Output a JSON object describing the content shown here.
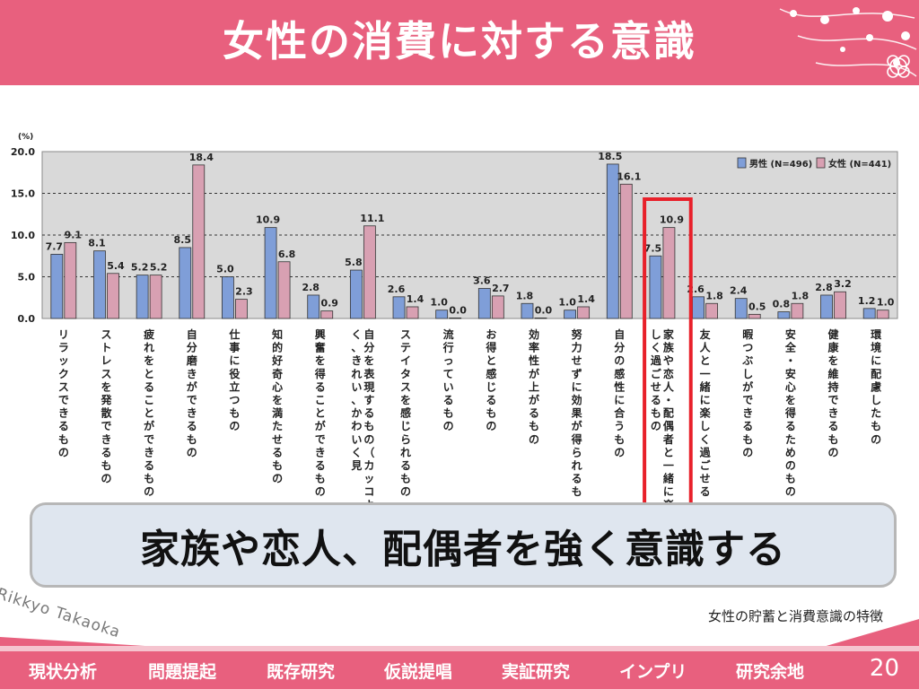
{
  "header": {
    "title": "女性の消費に対する意識"
  },
  "chart_data": {
    "type": "bar",
    "unit_label": "(%)",
    "yticks": [
      "20.0",
      "15.0",
      "10.0",
      "5.0",
      "0.0"
    ],
    "ylim": [
      0,
      20
    ],
    "legend_placement": "top-right",
    "categories": [
      "リラックスできるもの",
      "ストレスを発散できるもの",
      "疲れをとることができるもの",
      "自分磨きができるもの",
      "仕事に役立つもの",
      "知的好奇心を満たせるもの",
      "興奮を得ることができるもの",
      "自分を表現するもの（カッコよく、きれい、かわいく見",
      "ステイタスを感じられるもの",
      "流行っているもの",
      "お得と感じるもの",
      "効率性が上がるもの",
      "努力せずに効果が得られるも",
      "自分の感性に合うもの",
      "家族や恋人・配偶者と一緒に楽しく過ごせるもの",
      "友人と一緒に楽しく過ごせる",
      "暇つぶしができるもの",
      "安全・安心を得るためのもの",
      "健康を維持できるもの",
      "環境に配慮したもの"
    ],
    "series": [
      {
        "name": "男性 (N=496)",
        "color": "#7f9ed8",
        "values": [
          7.7,
          8.1,
          5.2,
          8.5,
          5.0,
          10.9,
          2.8,
          5.8,
          2.6,
          1.0,
          3.6,
          1.8,
          1.0,
          18.5,
          7.5,
          2.6,
          2.4,
          0.8,
          2.8,
          1.2
        ],
        "labels": [
          "7.7",
          "8.1",
          "5.2",
          "8.5",
          "5.0",
          "10.9",
          "2.8",
          "5.8",
          "2.6",
          "1.0",
          "3.6",
          "1.8",
          "1.0",
          "18.5",
          "7.5",
          "2.6",
          "2.4",
          "0.8",
          "2.8",
          "1.2"
        ]
      },
      {
        "name": "女性 (N=441)",
        "color": "#d8a0b2",
        "values": [
          9.1,
          5.4,
          5.2,
          18.4,
          2.3,
          6.8,
          0.9,
          11.1,
          1.4,
          0.0,
          2.7,
          0.0,
          1.4,
          16.1,
          10.9,
          1.8,
          0.5,
          1.8,
          3.2,
          1.0
        ],
        "labels": [
          "9.1",
          "5.4",
          "5.2",
          "18.4",
          "2.3",
          "6.8",
          "0.9",
          "11.1",
          "1.4",
          "0.0",
          "2.7",
          "0.0",
          "1.4",
          "16.1",
          "10.9",
          "1.8",
          "0.5",
          "1.8",
          "3.2",
          "1.0"
        ]
      }
    ],
    "highlight_index": 14,
    "highlight_color": "#e8202a"
  },
  "callout": {
    "text": "家族や恋人、配偶者を強く意識する"
  },
  "source": "女性の貯蓄と消費意識の特徴",
  "watermark": "Rikkyo Takaoka",
  "footer": {
    "nav": [
      "現状分析",
      "問題提起",
      "既存研究",
      "仮説提唱",
      "実証研究",
      "インプリ",
      "研究余地"
    ],
    "page": "20"
  }
}
